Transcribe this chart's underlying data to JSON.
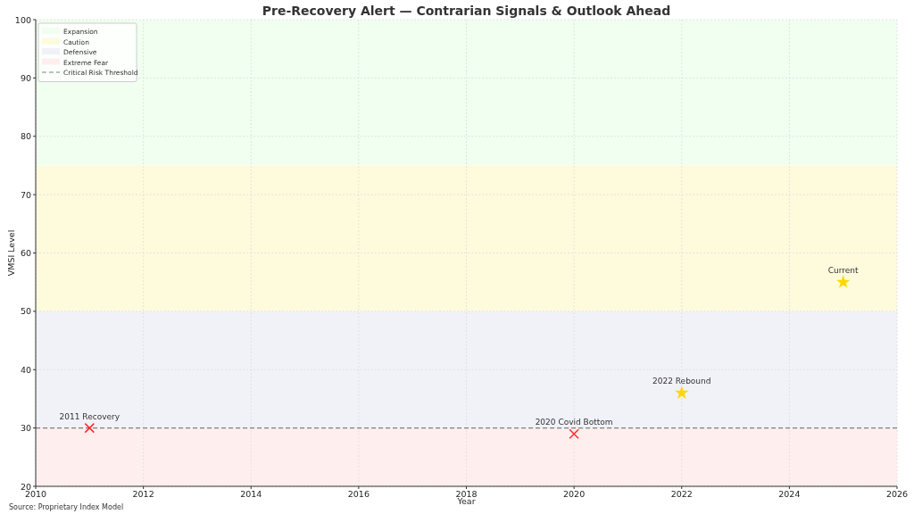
{
  "chart_data": {
    "type": "scatter",
    "title": "Pre-Recovery Alert — Contrarian Signals & Outlook Ahead",
    "xlabel": "Year",
    "ylabel": "VMSI Level",
    "series": [
      {
        "marker": "cross",
        "color": "#ff2a2a",
        "x": [
          2011,
          2020
        ],
        "values": [
          30,
          29
        ]
      },
      {
        "marker": "star",
        "color": "#ffd700",
        "x": [
          2022,
          2025
        ],
        "values": [
          36,
          55
        ]
      }
    ],
    "annotations": [
      {
        "text": "2011 Recovery",
        "x": 2011,
        "y": 30
      },
      {
        "text": "2020 Covid Bottom",
        "x": 2020,
        "y": 29
      },
      {
        "text": "2022 Rebound",
        "x": 2022,
        "y": 36
      },
      {
        "text": "Current",
        "x": 2025,
        "y": 55
      },
      "Source: Proprietary Index Model"
    ],
    "bands": [
      {
        "axis": "y",
        "from": 75,
        "to": 100,
        "label": "Expansion",
        "color": "#f0fff0"
      },
      {
        "axis": "y",
        "from": 50,
        "to": 75,
        "label": "Caution",
        "color": "#fdfbdc"
      },
      {
        "axis": "y",
        "from": 30,
        "to": 50,
        "label": "Defensive",
        "color": "#f1f1f8"
      },
      {
        "axis": "y",
        "from": 20,
        "to": 30,
        "label": "Extreme Fear",
        "color": "#ffeeee"
      }
    ],
    "ref_lines": [
      {
        "axis": "y",
        "value": 30,
        "label": "Critical Risk Threshold",
        "color": "#808080",
        "line_style": "dashed"
      }
    ],
    "xlim": [
      2010,
      2026
    ],
    "xticks": [
      2010,
      2012,
      2014,
      2016,
      2018,
      2020,
      2022,
      2024,
      2026
    ],
    "ylim": [
      20,
      100
    ],
    "yticks": [
      20,
      30,
      40,
      50,
      60,
      70,
      80,
      90,
      100
    ],
    "grid": true,
    "legend": "top left"
  }
}
